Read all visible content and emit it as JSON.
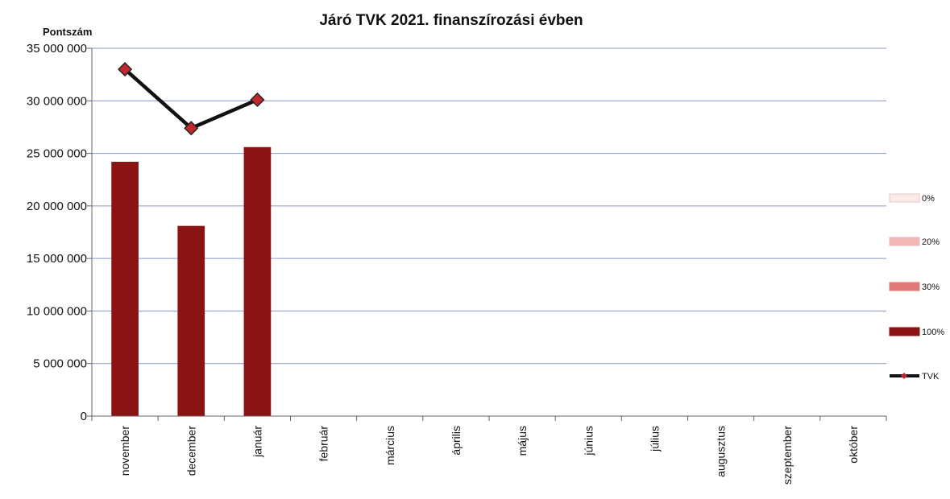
{
  "chart_data": {
    "type": "bar",
    "title": "Járó TVK 2021. finanszírozási évben",
    "ylabel": "Pontszám",
    "xlabel": "",
    "categories": [
      "november",
      "december",
      "január",
      "február",
      "március",
      "április",
      "május",
      "június",
      "július",
      "augusztus",
      "szeptember",
      "október"
    ],
    "ylim": [
      0,
      35000000
    ],
    "yticks": [
      0,
      5000000,
      10000000,
      15000000,
      20000000,
      25000000,
      30000000,
      35000000
    ],
    "ytick_labels": [
      "0",
      "5 000 000",
      "10 000 000",
      "15 000 000",
      "20 000 000",
      "25 000 000",
      "30 000 000",
      "35 000 000"
    ],
    "grid": true,
    "legend_position": "right",
    "series": [
      {
        "name": "0%",
        "kind": "bar",
        "color": "#fbeaea",
        "values": [
          null,
          null,
          null,
          null,
          null,
          null,
          null,
          null,
          null,
          null,
          null,
          null
        ]
      },
      {
        "name": "20%",
        "kind": "bar",
        "color": "#f2b8b8",
        "values": [
          null,
          null,
          null,
          null,
          null,
          null,
          null,
          null,
          null,
          null,
          null,
          null
        ]
      },
      {
        "name": "30%",
        "kind": "bar",
        "color": "#e07a7a",
        "values": [
          null,
          null,
          null,
          null,
          null,
          null,
          null,
          null,
          null,
          null,
          null,
          null
        ]
      },
      {
        "name": "100%",
        "kind": "bar",
        "color": "#8b1313",
        "values": [
          24200000,
          18100000,
          25600000,
          null,
          null,
          null,
          null,
          null,
          null,
          null,
          null,
          null
        ]
      },
      {
        "name": "TVK",
        "kind": "line",
        "color": "#111111",
        "marker_color": "#c0282d",
        "values": [
          33000000,
          27400000,
          30100000,
          null,
          null,
          null,
          null,
          null,
          null,
          null,
          null,
          null
        ]
      }
    ]
  }
}
